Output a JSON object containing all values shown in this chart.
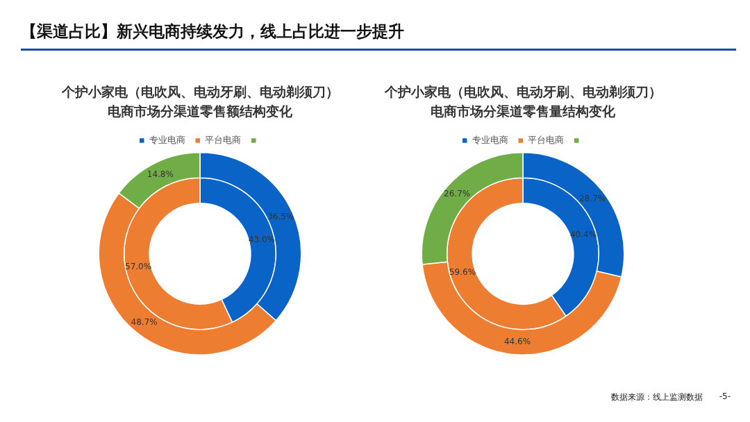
{
  "chart_data": [
    {
      "type": "donut",
      "title": "个护小家电（电吹风、电动牙刷、电动剃须刀）电商市场分渠道零售额结构变化",
      "categories": [
        "专业电商",
        "平台电商",
        null
      ],
      "colors": [
        "#0a64c8",
        "#ed7d31",
        "#70ad47"
      ],
      "legend": "top",
      "annotations": [
        "【渠道占比】新兴电商持续发力，线上占比进一步提升"
      ],
      "series": [
        {
          "values": [
            36.5,
            48.7,
            14.8
          ],
          "value_labels": [
            "36.5%",
            "48.7%",
            "14.8%"
          ]
        },
        {
          "values": [
            43.0,
            57.0,
            null
          ],
          "value_labels": [
            "43.0%",
            "57.0%",
            null
          ]
        }
      ]
    },
    {
      "type": "donut",
      "title": "个护小家电（电吹风、电动牙刷、电动剃须刀）电商市场分渠道零售量结构变化",
      "categories": [
        "专业电商",
        "平台电商",
        null
      ],
      "colors": [
        "#0a64c8",
        "#ed7d31",
        "#70ad47"
      ],
      "legend": "top",
      "annotations": [
        "数据来源：线上监测数据",
        "-5-"
      ],
      "series": [
        {
          "values": [
            28.7,
            44.6,
            26.7
          ],
          "value_labels": [
            "28.7%",
            "44.6%",
            "26.7%"
          ]
        },
        {
          "values": [
            40.4,
            59.6,
            null
          ],
          "value_labels": [
            "40.4%",
            "59.6%",
            null
          ]
        }
      ]
    }
  ]
}
